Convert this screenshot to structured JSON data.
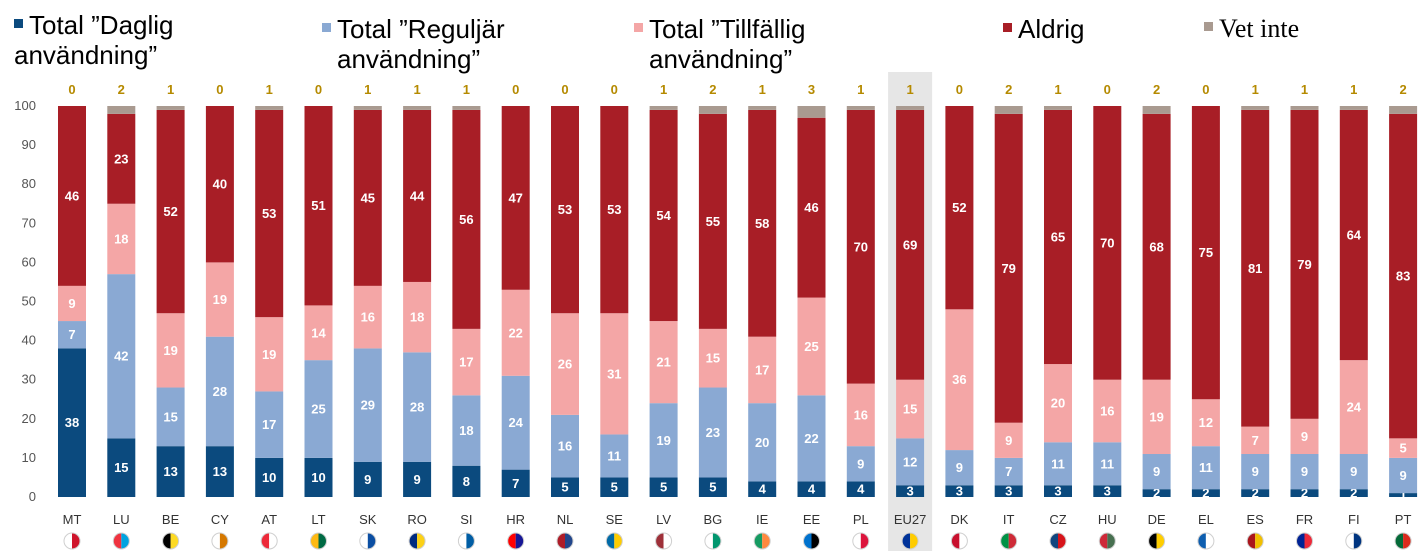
{
  "legend": {
    "items": [
      {
        "label_line1": "Total ”Daglig",
        "label_line2": "användning”",
        "color": "#0b4a7e"
      },
      {
        "label_line1": "Total ”Reguljär",
        "label_line2": "användning”",
        "color": "#8aa9d3"
      },
      {
        "label_line1": "Total ”Tillfällig",
        "label_line2": "användning”",
        "color": "#f4a6a6"
      },
      {
        "label_line1": "Aldrig",
        "label_line2": "",
        "color": "#a81e26"
      },
      {
        "label_line1": "Vet inte",
        "label_line2": "",
        "color": "#a99a90"
      }
    ]
  },
  "chart_data": {
    "type": "bar",
    "stacked": true,
    "ylim": [
      0,
      100
    ],
    "yticks": [
      0,
      10,
      20,
      30,
      40,
      50,
      60,
      70,
      80,
      90,
      100
    ],
    "categories": [
      "MT",
      "LU",
      "BE",
      "CY",
      "AT",
      "LT",
      "SK",
      "RO",
      "SI",
      "HR",
      "NL",
      "SE",
      "LV",
      "BG",
      "IE",
      "EE",
      "PL",
      "EU27",
      "DK",
      "IT",
      "CZ",
      "HU",
      "DE",
      "EL",
      "ES",
      "FR",
      "FI",
      "PT"
    ],
    "highlight_category": "EU27",
    "series": [
      {
        "name": "Total ”Daglig användning”",
        "color": "#0b4a7e",
        "values": [
          38,
          15,
          13,
          13,
          10,
          10,
          9,
          9,
          8,
          7,
          5,
          5,
          5,
          5,
          4,
          4,
          4,
          3,
          3,
          3,
          3,
          3,
          2,
          2,
          2,
          2,
          2,
          1
        ]
      },
      {
        "name": "Total ”Reguljär användning”",
        "color": "#8aa9d3",
        "values": [
          7,
          42,
          15,
          28,
          17,
          25,
          29,
          28,
          18,
          24,
          16,
          11,
          19,
          23,
          20,
          22,
          9,
          12,
          9,
          7,
          11,
          11,
          9,
          11,
          9,
          9,
          9,
          9
        ]
      },
      {
        "name": "Total ”Tillfällig användning”",
        "color": "#f4a6a6",
        "values": [
          9,
          18,
          19,
          19,
          19,
          14,
          16,
          18,
          17,
          22,
          26,
          31,
          21,
          15,
          17,
          25,
          16,
          15,
          36,
          9,
          20,
          16,
          19,
          12,
          7,
          9,
          24,
          5
        ]
      },
      {
        "name": "Aldrig",
        "color": "#a81e26",
        "values": [
          46,
          23,
          52,
          40,
          53,
          51,
          45,
          44,
          56,
          47,
          53,
          53,
          54,
          55,
          58,
          46,
          70,
          69,
          52,
          79,
          65,
          70,
          68,
          75,
          81,
          79,
          64,
          83
        ]
      },
      {
        "name": "Vet inte",
        "color": "#a99a90",
        "values": [
          0,
          2,
          1,
          0,
          1,
          0,
          1,
          1,
          1,
          0,
          0,
          0,
          1,
          2,
          1,
          3,
          1,
          1,
          0,
          2,
          1,
          0,
          2,
          0,
          1,
          1,
          1,
          2
        ]
      }
    ],
    "labeled_series": [
      "Total ”Daglig användning”",
      "Total ”Reguljär användning”",
      "Total ”Tillfällig användning”",
      "Aldrig"
    ],
    "top_labels_series": "Vet inte",
    "flag_icons": [
      "malta-flag-icon",
      "luxembourg-flag-icon",
      "belgium-flag-icon",
      "cyprus-flag-icon",
      "austria-flag-icon",
      "lithuania-flag-icon",
      "slovakia-flag-icon",
      "romania-flag-icon",
      "slovenia-flag-icon",
      "croatia-flag-icon",
      "netherlands-flag-icon",
      "sweden-flag-icon",
      "latvia-flag-icon",
      "bulgaria-flag-icon",
      "ireland-flag-icon",
      "estonia-flag-icon",
      "poland-flag-icon",
      "eu-flag-icon",
      "denmark-flag-icon",
      "italy-flag-icon",
      "czechia-flag-icon",
      "hungary-flag-icon",
      "germany-flag-icon",
      "greece-flag-icon",
      "spain-flag-icon",
      "france-flag-icon",
      "finland-flag-icon",
      "portugal-flag-icon"
    ],
    "flag_colors": [
      [
        "#ffffff",
        "#cf142b"
      ],
      [
        "#ef3340",
        "#00a3e0"
      ],
      [
        "#000000",
        "#fdda24"
      ],
      [
        "#ffffff",
        "#d57800"
      ],
      [
        "#ed2939",
        "#ffffff"
      ],
      [
        "#fdb913",
        "#006a44"
      ],
      [
        "#ffffff",
        "#0b4ea2"
      ],
      [
        "#002b7f",
        "#fcd116"
      ],
      [
        "#ffffff",
        "#005da4"
      ],
      [
        "#ff0000",
        "#171796"
      ],
      [
        "#ae1c28",
        "#21468b"
      ],
      [
        "#006aa7",
        "#fecc00"
      ],
      [
        "#9e3039",
        "#ffffff"
      ],
      [
        "#ffffff",
        "#00966e"
      ],
      [
        "#169b62",
        "#ff883e"
      ],
      [
        "#0072ce",
        "#000000"
      ],
      [
        "#ffffff",
        "#dc143c"
      ],
      [
        "#003399",
        "#ffcc00"
      ],
      [
        "#c8102e",
        "#ffffff"
      ],
      [
        "#009246",
        "#ce2b37"
      ],
      [
        "#11457e",
        "#d7141a"
      ],
      [
        "#ce2939",
        "#477050"
      ],
      [
        "#000000",
        "#ffce00"
      ],
      [
        "#0d5eaf",
        "#ffffff"
      ],
      [
        "#aa151b",
        "#f1bf00"
      ],
      [
        "#002395",
        "#ed2939"
      ],
      [
        "#ffffff",
        "#003580"
      ],
      [
        "#046a38",
        "#da291c"
      ]
    ]
  }
}
